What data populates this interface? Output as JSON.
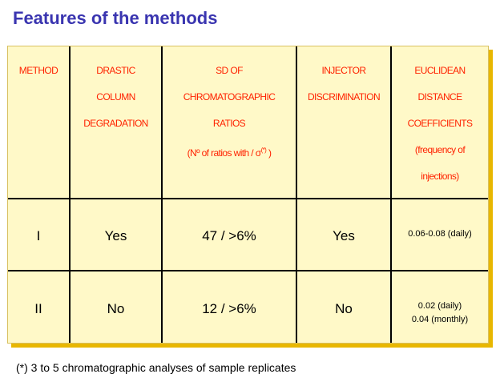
{
  "title": "Features of the methods",
  "headers": {
    "method": [
      "METHOD"
    ],
    "degradation": [
      "DRASTIC",
      "COLUMN",
      "DEGRADATION"
    ],
    "sd": [
      "SD  OF",
      "CHROMATOGRAPHIC",
      "RATIOS"
    ],
    "sd_note_prefix": "(Nº of ratios with / σ",
    "sd_note_sup": "(*)",
    "sd_note_suffix": " )",
    "injector": [
      "INJECTOR",
      "DISCRIMINATION"
    ],
    "euclid": [
      "EUCLIDEAN",
      "DISTANCE",
      "COEFFICIENTS",
      "(frequency of",
      "injections)"
    ]
  },
  "rows": [
    {
      "method": "I",
      "degradation": "Yes",
      "sd": "47 / >6%",
      "injector": "Yes",
      "euclid": [
        "0.06-0.08 (daily)"
      ]
    },
    {
      "method": "II",
      "degradation": "No",
      "sd": "12  / >6%",
      "injector": "No",
      "euclid": [
        "0.02 (daily)",
        "0.04 (monthly)"
      ]
    }
  ],
  "footnote": "(*)  3 to 5 chromatographic analyses of sample replicates",
  "colors": {
    "title": "#3a35b0",
    "header_text": "#ff2200",
    "panel": "#fff9c8",
    "shadow": "#e8b700"
  }
}
